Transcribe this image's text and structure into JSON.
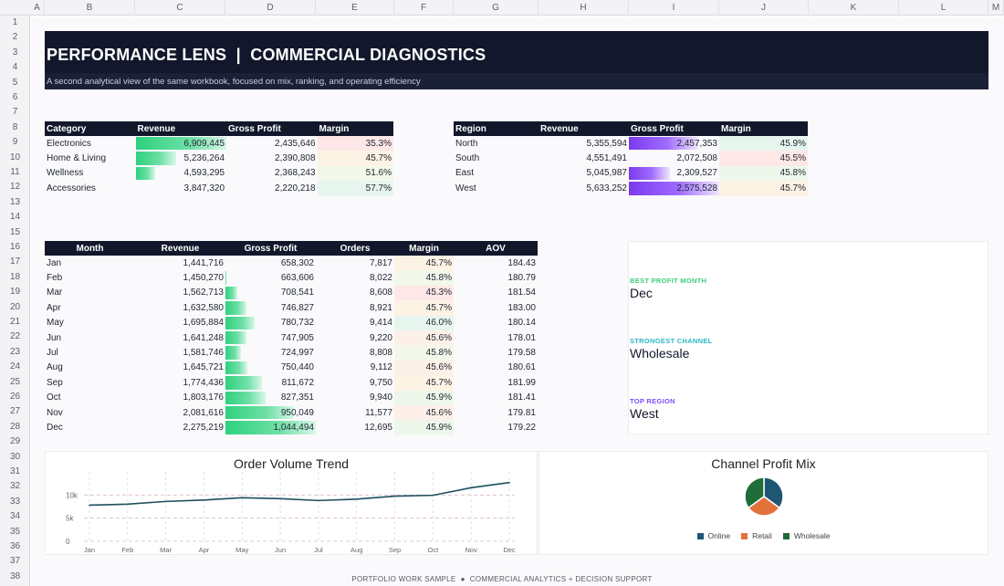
{
  "columns": [
    "A",
    "B",
    "C",
    "D",
    "E",
    "F",
    "G",
    "H",
    "I",
    "J",
    "K",
    "L",
    "M"
  ],
  "rows": [
    "1",
    "2",
    "3",
    "4",
    "5",
    "6",
    "7",
    "8",
    "9",
    "10",
    "11",
    "12",
    "13",
    "14",
    "15",
    "16",
    "17",
    "18",
    "19",
    "20",
    "21",
    "22",
    "23",
    "24",
    "25",
    "26",
    "27",
    "28",
    "29",
    "30",
    "31",
    "32",
    "33",
    "34",
    "35",
    "36",
    "37",
    "38"
  ],
  "banner": {
    "title": "PERFORMANCE LENS  |  COMMERCIAL DIAGNOSTICS",
    "subtitle": "A second analytical view of the same workbook, focused on mix, ranking, and operating efficiency"
  },
  "category_table": {
    "headers": [
      "Category",
      "Revenue",
      "Gross Profit",
      "Margin"
    ],
    "rows": [
      {
        "category": "Electronics",
        "revenue": "6,909,445",
        "gross_profit": "2,435,646",
        "margin": "35.3%",
        "rev_fill": 1.0,
        "margin_color": "#fde7e7"
      },
      {
        "category": "Home & Living",
        "revenue": "5,236,264",
        "gross_profit": "2,390,808",
        "margin": "45.7%",
        "rev_fill": 0.45,
        "margin_color": "#fdf3e4"
      },
      {
        "category": "Wellness",
        "revenue": "4,593,295",
        "gross_profit": "2,368,243",
        "margin": "51.6%",
        "rev_fill": 0.22,
        "margin_color": "#f3f8ea"
      },
      {
        "category": "Accessories",
        "revenue": "3,847,320",
        "gross_profit": "2,220,218",
        "margin": "57.7%",
        "rev_fill": 0.0,
        "margin_color": "#e6f6ee"
      }
    ]
  },
  "region_table": {
    "headers": [
      "Region",
      "Revenue",
      "Gross Profit",
      "Margin"
    ],
    "rows": [
      {
        "region": "North",
        "revenue": "5,355,594",
        "gross_profit": "2,457,353",
        "margin": "45.9%",
        "gp_fill": 0.77,
        "margin_color": "#e6f6ee"
      },
      {
        "region": "South",
        "revenue": "4,551,491",
        "gross_profit": "2,072,508",
        "margin": "45.5%",
        "gp_fill": 0.0,
        "margin_color": "#fde7e7"
      },
      {
        "region": "East",
        "revenue": "5,045,987",
        "gross_profit": "2,309,527",
        "margin": "45.8%",
        "gp_fill": 0.45,
        "margin_color": "#eef7ec"
      },
      {
        "region": "West",
        "revenue": "5,633,252",
        "gross_profit": "2,575,528",
        "margin": "45.7%",
        "gp_fill": 1.0,
        "margin_color": "#fdf3e4"
      }
    ]
  },
  "monthly_table": {
    "headers": [
      "Month",
      "Revenue",
      "Gross Profit",
      "Orders",
      "Margin",
      "AOV"
    ],
    "rows": [
      {
        "month": "Jan",
        "revenue": "1,441,716",
        "gross_profit": "658,302",
        "orders": "7,817",
        "margin": "45.7%",
        "aov": "184.43",
        "gp_fill": 0.0,
        "margin_color": "#fdf3e4"
      },
      {
        "month": "Feb",
        "revenue": "1,450,270",
        "gross_profit": "663,606",
        "orders": "8,022",
        "margin": "45.8%",
        "aov": "180.79",
        "gp_fill": 0.01,
        "margin_color": "#f3f8ea"
      },
      {
        "month": "Mar",
        "revenue": "1,562,713",
        "gross_profit": "708,541",
        "orders": "8,608",
        "margin": "45.3%",
        "aov": "181.54",
        "gp_fill": 0.13,
        "margin_color": "#fde7e7"
      },
      {
        "month": "Apr",
        "revenue": "1,632,580",
        "gross_profit": "746,827",
        "orders": "8,921",
        "margin": "45.7%",
        "aov": "183.00",
        "gp_fill": 0.23,
        "margin_color": "#fdf3e4"
      },
      {
        "month": "May",
        "revenue": "1,695,884",
        "gross_profit": "780,732",
        "orders": "9,414",
        "margin": "46.0%",
        "aov": "180.14",
        "gp_fill": 0.32,
        "margin_color": "#e6f6ee"
      },
      {
        "month": "Jun",
        "revenue": "1,641,248",
        "gross_profit": "747,905",
        "orders": "9,220",
        "margin": "45.6%",
        "aov": "178.01",
        "gp_fill": 0.23,
        "margin_color": "#fdf0e8"
      },
      {
        "month": "Jul",
        "revenue": "1,581,746",
        "gross_profit": "724,997",
        "orders": "8,808",
        "margin": "45.8%",
        "aov": "179.58",
        "gp_fill": 0.17,
        "margin_color": "#f3f8ea"
      },
      {
        "month": "Aug",
        "revenue": "1,645,721",
        "gross_profit": "750,440",
        "orders": "9,112",
        "margin": "45.6%",
        "aov": "180.61",
        "gp_fill": 0.24,
        "margin_color": "#fdf0e8"
      },
      {
        "month": "Sep",
        "revenue": "1,774,436",
        "gross_profit": "811,672",
        "orders": "9,750",
        "margin": "45.7%",
        "aov": "181.99",
        "gp_fill": 0.4,
        "margin_color": "#fdf3e4"
      },
      {
        "month": "Oct",
        "revenue": "1,803,176",
        "gross_profit": "827,351",
        "orders": "9,940",
        "margin": "45.9%",
        "aov": "181.41",
        "gp_fill": 0.44,
        "margin_color": "#eef7ec"
      },
      {
        "month": "Nov",
        "revenue": "2,081,616",
        "gross_profit": "950,049",
        "orders": "11,577",
        "margin": "45.6%",
        "aov": "179.81",
        "gp_fill": 0.76,
        "margin_color": "#fdf0e8"
      },
      {
        "month": "Dec",
        "revenue": "2,275,219",
        "gross_profit": "1,044,494",
        "orders": "12,695",
        "margin": "45.9%",
        "aov": "179.22",
        "gp_fill": 1.0,
        "margin_color": "#eef7ec"
      }
    ]
  },
  "kpis": [
    {
      "label": "BEST PROFIT MONTH",
      "value": "Dec",
      "color": "#3ccf7a"
    },
    {
      "label": "STRONGEST CHANNEL",
      "value": "Wholesale",
      "color": "#2bb8c9"
    },
    {
      "label": "TOP REGION",
      "value": "West",
      "color": "#7c4dff"
    }
  ],
  "chart_data": [
    {
      "type": "line",
      "title": "Order Volume Trend",
      "categories": [
        "Jan",
        "Feb",
        "Mar",
        "Apr",
        "May",
        "Jun",
        "Jul",
        "Aug",
        "Sep",
        "Oct",
        "Nov",
        "Dec"
      ],
      "values": [
        7817,
        8022,
        8608,
        8921,
        9414,
        9220,
        8808,
        9112,
        9750,
        9940,
        11577,
        12695
      ],
      "yticks": [
        "10k",
        "5k",
        "0"
      ],
      "ylim": [
        0,
        15000
      ],
      "grid": true,
      "color": "#1e4f5e"
    },
    {
      "type": "pie",
      "title": "Channel Profit Mix",
      "labels": [
        "Online",
        "Retail",
        "Wholesale"
      ],
      "values": [
        35,
        30,
        35
      ],
      "colors": [
        "#1f5673",
        "#e2713a",
        "#1f6e3a"
      ],
      "legend": "bottom"
    }
  ],
  "footer": "PORTFOLIO WORK SAMPLE  ●  COMMERCIAL ANALYTICS + DECISION SUPPORT"
}
